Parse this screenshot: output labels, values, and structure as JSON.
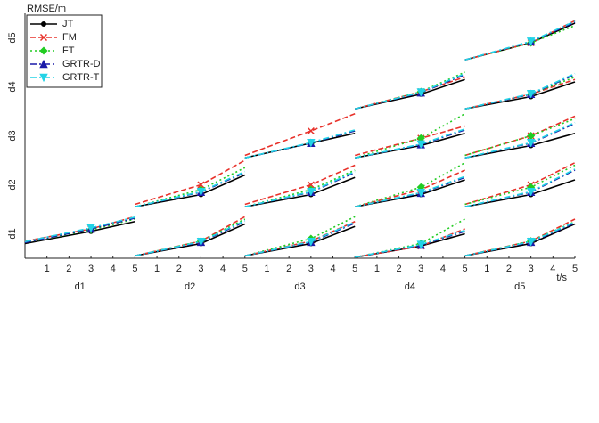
{
  "chart_data": {
    "type": "line-matrix",
    "y_label": "RMSE/m",
    "x_label": "t/s",
    "col_labels": [
      "d1",
      "d2",
      "d3",
      "d4",
      "d5"
    ],
    "row_labels": [
      "d1",
      "d2",
      "d3",
      "d4",
      "d5"
    ],
    "x": [
      0,
      3,
      5
    ],
    "xlim": [
      0,
      5
    ],
    "xticks": [
      1,
      2,
      3,
      4,
      5
    ],
    "ylim": [
      0,
      1
    ],
    "legend": "top-left",
    "series": [
      {
        "name": "JT",
        "color": "#000000",
        "style": "solid",
        "marker": "circle",
        "values": [
          [
            [
              0.3,
              0.55,
              0.75
            ]
          ],
          [
            [
              0.05,
              0.3,
              0.7
            ],
            [
              0.05,
              0.3,
              0.7
            ]
          ],
          [
            [
              0.05,
              0.3,
              0.65
            ],
            [
              0.05,
              0.3,
              0.65
            ],
            [
              0.05,
              0.35,
              0.55
            ]
          ],
          [
            [
              0.02,
              0.25,
              0.5
            ],
            [
              0.05,
              0.3,
              0.6
            ],
            [
              0.05,
              0.3,
              0.55
            ],
            [
              0.05,
              0.35,
              0.65
            ]
          ],
          [
            [
              0.05,
              0.3,
              0.7
            ],
            [
              0.05,
              0.3,
              0.6
            ],
            [
              0.05,
              0.3,
              0.55
            ],
            [
              0.05,
              0.3,
              0.6
            ],
            [
              0.05,
              0.4,
              0.8
            ]
          ]
        ]
      },
      {
        "name": "FM",
        "color": "#e8312a",
        "style": "dashed",
        "marker": "x",
        "values": [
          [
            [
              0.35,
              0.6,
              0.85
            ]
          ],
          [
            [
              0.05,
              0.35,
              0.85
            ],
            [
              0.1,
              0.5,
              1.0
            ]
          ],
          [
            [
              0.05,
              0.35,
              0.75
            ],
            [
              0.1,
              0.5,
              0.9
            ],
            [
              0.1,
              0.6,
              0.95
            ]
          ],
          [
            [
              0.02,
              0.25,
              0.6
            ],
            [
              0.05,
              0.4,
              0.8
            ],
            [
              0.1,
              0.45,
              0.7
            ],
            [
              0.05,
              0.4,
              0.7
            ]
          ],
          [
            [
              0.05,
              0.35,
              0.8
            ],
            [
              0.1,
              0.5,
              0.95
            ],
            [
              0.1,
              0.5,
              0.9
            ],
            [
              0.05,
              0.35,
              0.65
            ],
            [
              0.05,
              0.4,
              0.85
            ]
          ]
        ]
      },
      {
        "name": "FT",
        "color": "#22cc22",
        "style": "dotted",
        "marker": "diamond",
        "values": [
          [
            [
              0.32,
              0.58,
              0.8
            ]
          ],
          [
            [
              0.05,
              0.35,
              0.8
            ],
            [
              0.05,
              0.4,
              0.85
            ]
          ],
          [
            [
              0.05,
              0.4,
              0.85
            ],
            [
              0.05,
              0.4,
              0.8
            ],
            [
              0.05,
              0.35,
              0.6
            ]
          ],
          [
            [
              0.02,
              0.3,
              0.8
            ],
            [
              0.05,
              0.45,
              0.95
            ],
            [
              0.05,
              0.45,
              0.95
            ],
            [
              0.05,
              0.4,
              0.8
            ]
          ],
          [
            [
              0.05,
              0.35,
              0.75
            ],
            [
              0.1,
              0.45,
              0.9
            ],
            [
              0.1,
              0.5,
              0.85
            ],
            [
              0.05,
              0.35,
              0.7
            ],
            [
              0.05,
              0.4,
              0.75
            ]
          ]
        ]
      },
      {
        "name": "GRTR-D",
        "color": "#1a1aa8",
        "style": "dashdot",
        "marker": "triangle-up",
        "values": [
          [
            [
              0.32,
              0.6,
              0.82
            ]
          ],
          [
            [
              0.05,
              0.33,
              0.75
            ],
            [
              0.05,
              0.35,
              0.75
            ]
          ],
          [
            [
              0.05,
              0.33,
              0.72
            ],
            [
              0.05,
              0.35,
              0.75
            ],
            [
              0.05,
              0.35,
              0.6
            ]
          ],
          [
            [
              0.02,
              0.27,
              0.55
            ],
            [
              0.05,
              0.33,
              0.65
            ],
            [
              0.05,
              0.32,
              0.62
            ],
            [
              0.05,
              0.38,
              0.75
            ]
          ],
          [
            [
              0.05,
              0.33,
              0.72
            ],
            [
              0.05,
              0.35,
              0.8
            ],
            [
              0.05,
              0.35,
              0.75
            ],
            [
              0.05,
              0.35,
              0.75
            ],
            [
              0.05,
              0.42,
              0.82
            ]
          ]
        ]
      },
      {
        "name": "GRTR-T",
        "color": "#22d3e6",
        "style": "dashdot",
        "marker": "triangle-down",
        "values": [
          [
            [
              0.34,
              0.62,
              0.84
            ]
          ],
          [
            [
              0.05,
              0.34,
              0.77
            ],
            [
              0.05,
              0.36,
              0.77
            ]
          ],
          [
            [
              0.05,
              0.34,
              0.74
            ],
            [
              0.05,
              0.36,
              0.77
            ],
            [
              0.05,
              0.36,
              0.62
            ]
          ],
          [
            [
              0.02,
              0.28,
              0.57
            ],
            [
              0.05,
              0.34,
              0.67
            ],
            [
              0.05,
              0.33,
              0.64
            ],
            [
              0.05,
              0.39,
              0.77
            ]
          ],
          [
            [
              0.05,
              0.34,
              0.74
            ],
            [
              0.05,
              0.36,
              0.82
            ],
            [
              0.05,
              0.36,
              0.77
            ],
            [
              0.05,
              0.36,
              0.77
            ],
            [
              0.05,
              0.43,
              0.84
            ]
          ]
        ]
      }
    ]
  }
}
